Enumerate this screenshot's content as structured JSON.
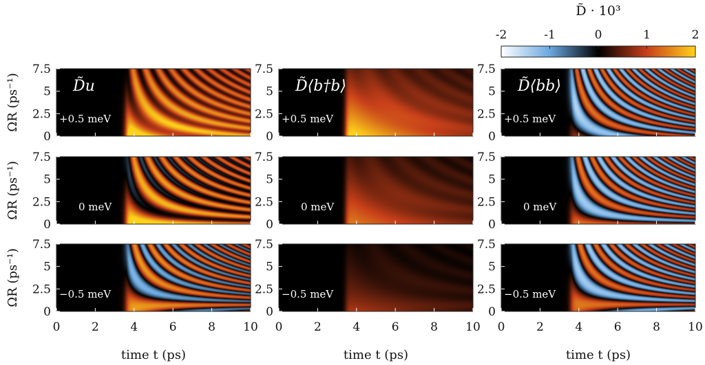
{
  "chart_data": {
    "type": "heatmap",
    "colorbar": {
      "title": "D̃ · 10³",
      "range": [
        -2,
        2
      ],
      "ticks": [
        "-2",
        "-1",
        "0",
        "1",
        "2"
      ],
      "colors": [
        "#ffffff",
        "#6aa8e0",
        "#000000",
        "#c8401a",
        "#ffd21a"
      ]
    },
    "x_axis": {
      "label": "time t (ps)",
      "range": [
        0,
        10
      ],
      "ticks": [
        "0",
        "2",
        "4",
        "6",
        "8",
        "10"
      ]
    },
    "y_axis": {
      "label": "ΩR (ps⁻¹)",
      "range": [
        0,
        7.5
      ],
      "ticks": [
        "0",
        "2.5",
        "5",
        "7.5"
      ]
    },
    "columns": [
      {
        "title": "D̃u",
        "kind": "u"
      },
      {
        "title": "D̃⟨b†b⟩",
        "kind": "bdb"
      },
      {
        "title": "D̃⟨bb⟩",
        "kind": "bb"
      }
    ],
    "rows": [
      {
        "detuning": "+0.5 meV",
        "delta": 0.5
      },
      {
        "detuning": "0 meV",
        "delta": 0
      },
      {
        "detuning": "−0.5 meV",
        "delta": -0.5
      }
    ]
  }
}
